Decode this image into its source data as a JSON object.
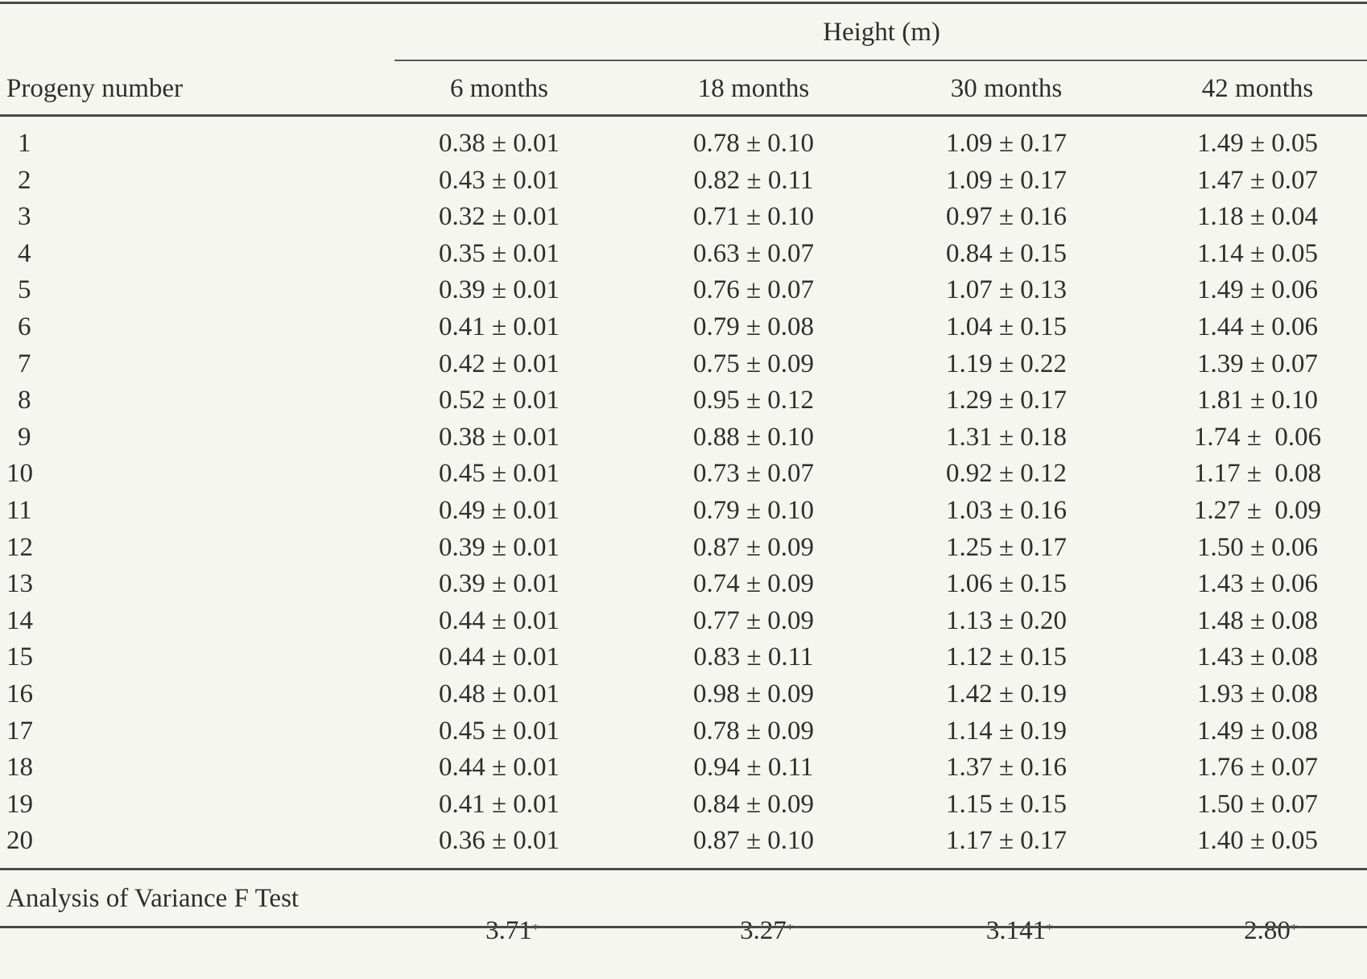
{
  "table": {
    "group_header": "Height (m)",
    "row_header": "Progeny number",
    "columns": [
      "6 months",
      "18 months",
      "30 months",
      "42 months"
    ],
    "rows": [
      {
        "id": "1",
        "values": [
          "0.38 ± 0.01",
          "0.78 ± 0.10",
          "1.09 ± 0.17",
          "1.49 ± 0.05"
        ]
      },
      {
        "id": "2",
        "values": [
          "0.43 ± 0.01",
          "0.82 ± 0.11",
          "1.09 ± 0.17",
          "1.47 ± 0.07"
        ]
      },
      {
        "id": "3",
        "values": [
          "0.32 ± 0.01",
          "0.71 ± 0.10",
          "0.97 ± 0.16",
          "1.18 ± 0.04"
        ]
      },
      {
        "id": "4",
        "values": [
          "0.35 ± 0.01",
          "0.63 ± 0.07",
          "0.84 ± 0.15",
          "1.14 ± 0.05"
        ]
      },
      {
        "id": "5",
        "values": [
          "0.39 ± 0.01",
          "0.76 ± 0.07",
          "1.07 ± 0.13",
          "1.49 ± 0.06"
        ]
      },
      {
        "id": "6",
        "values": [
          "0.41 ± 0.01",
          "0.79 ± 0.08",
          "1.04 ± 0.15",
          "1.44 ± 0.06"
        ]
      },
      {
        "id": "7",
        "values": [
          "0.42 ± 0.01",
          "0.75 ± 0.09",
          "1.19 ± 0.22",
          "1.39 ± 0.07"
        ]
      },
      {
        "id": "8",
        "values": [
          "0.52 ± 0.01",
          "0.95 ± 0.12",
          "1.29 ± 0.17",
          "1.81 ± 0.10"
        ]
      },
      {
        "id": "9",
        "values": [
          "0.38 ± 0.01",
          "0.88 ± 0.10",
          "1.31 ± 0.18",
          "1.74 ±  0.06"
        ]
      },
      {
        "id": "10",
        "values": [
          "0.45 ± 0.01",
          "0.73 ± 0.07",
          "0.92 ± 0.12",
          "1.17 ±  0.08"
        ]
      },
      {
        "id": "11",
        "values": [
          "0.49 ± 0.01",
          "0.79 ± 0.10",
          "1.03 ± 0.16",
          "1.27 ±  0.09"
        ]
      },
      {
        "id": "12",
        "values": [
          "0.39 ± 0.01",
          "0.87 ± 0.09",
          "1.25 ± 0.17",
          "1.50 ± 0.06"
        ]
      },
      {
        "id": "13",
        "values": [
          "0.39 ± 0.01",
          "0.74 ± 0.09",
          "1.06 ± 0.15",
          "1.43 ± 0.06"
        ]
      },
      {
        "id": "14",
        "values": [
          "0.44 ± 0.01",
          "0.77 ± 0.09",
          "1.13 ± 0.20",
          "1.48 ± 0.08"
        ]
      },
      {
        "id": "15",
        "values": [
          "0.44 ± 0.01",
          "0.83 ± 0.11",
          "1.12 ± 0.15",
          "1.43 ± 0.08"
        ]
      },
      {
        "id": "16",
        "values": [
          "0.48 ± 0.01",
          "0.98 ± 0.09",
          "1.42 ± 0.19",
          "1.93 ± 0.08"
        ]
      },
      {
        "id": "17",
        "values": [
          "0.45 ± 0.01",
          "0.78 ± 0.09",
          "1.14 ± 0.19",
          "1.49 ± 0.08"
        ]
      },
      {
        "id": "18",
        "values": [
          "0.44 ± 0.01",
          "0.94 ± 0.11",
          "1.37 ± 0.16",
          "1.76 ± 0.07"
        ]
      },
      {
        "id": "19",
        "values": [
          "0.41 ± 0.01",
          "0.84 ± 0.09",
          "1.15 ± 0.15",
          "1.50 ± 0.07"
        ]
      },
      {
        "id": "20",
        "values": [
          "0.36 ± 0.01",
          "0.87 ± 0.10",
          "1.17 ± 0.17",
          "1.40 ± 0.05"
        ]
      }
    ],
    "footer": {
      "label": "Analysis of Variance F Test",
      "values": [
        "3.71",
        "3.27",
        "3.141",
        "2.80"
      ],
      "marker": "*"
    }
  }
}
